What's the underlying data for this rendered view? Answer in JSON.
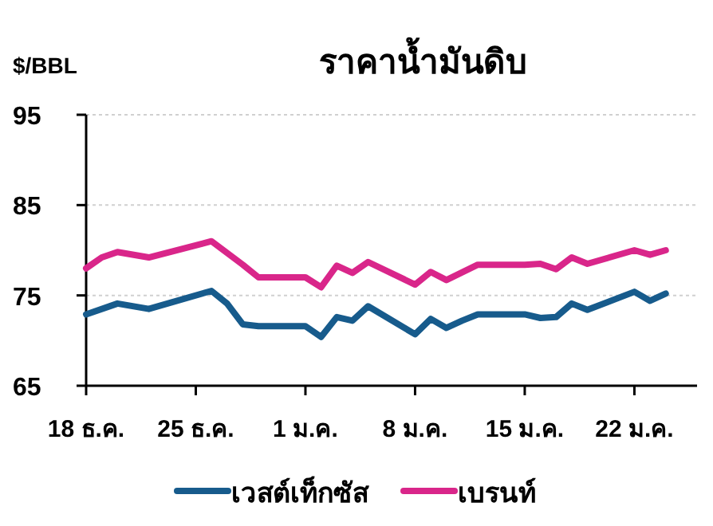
{
  "chart_data": {
    "type": "line",
    "title": "ราคาน้ำมันดิบ",
    "ylabel": "$/BBL",
    "categories": [
      "18 ธ.ค.",
      null,
      null,
      null,
      null,
      null,
      null,
      "25 ธ.ค.",
      null,
      null,
      null,
      null,
      null,
      null,
      "1 ม.ค.",
      null,
      null,
      null,
      null,
      null,
      null,
      "8 ม.ค.",
      null,
      null,
      null,
      null,
      null,
      null,
      "15 ม.ค.",
      null,
      null,
      null,
      null,
      null,
      null,
      "22 ม.ค.",
      null,
      null,
      null
    ],
    "ylim": [
      65,
      95
    ],
    "yticks": [
      65,
      75,
      85,
      95
    ],
    "grid": "y",
    "legend": "bottom",
    "marker": "none",
    "line_style": "solid",
    "series": [
      {
        "name": "เวสต์เท็กซัส",
        "color": "#175b8c",
        "values": [
          72.9,
          null,
          74.1,
          null,
          73.5,
          null,
          null,
          null,
          75.5,
          74.1,
          71.8,
          71.6,
          null,
          null,
          71.6,
          70.4,
          72.6,
          72.2,
          73.8,
          null,
          null,
          70.7,
          72.4,
          71.4,
          72.2,
          72.9,
          null,
          null,
          72.9,
          72.5,
          72.6,
          74.1,
          73.4,
          null,
          null,
          75.4,
          74.4,
          75.2,
          null
        ]
      },
      {
        "name": "เบรนท์",
        "color": "#d9268a",
        "values": [
          78.0,
          79.2,
          79.8,
          null,
          79.2,
          null,
          null,
          null,
          81.0,
          null,
          78.4,
          77.0,
          null,
          null,
          77.0,
          75.9,
          78.3,
          77.5,
          78.7,
          null,
          null,
          76.2,
          77.6,
          76.7,
          null,
          78.4,
          null,
          null,
          78.4,
          78.5,
          77.9,
          79.2,
          78.5,
          null,
          null,
          80.0,
          79.5,
          80.0,
          null
        ]
      }
    ]
  }
}
